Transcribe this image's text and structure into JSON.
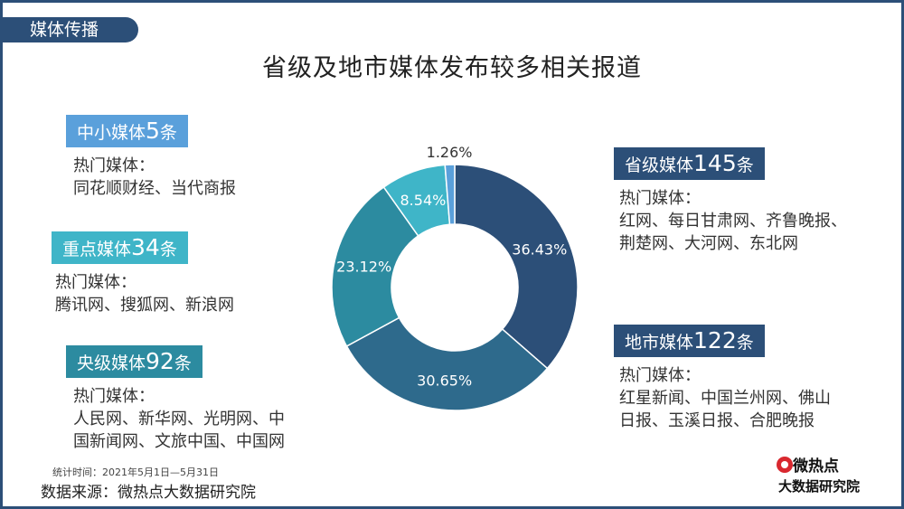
{
  "header": {
    "tag": "媒体传播",
    "title": "省级及地市媒体发布较多相关报道"
  },
  "groups": {
    "small": {
      "label": "中小媒体",
      "count": "5",
      "unit": "条",
      "line1": "热门媒体：",
      "line2": "同花顺财经、当代商报",
      "line3": ""
    },
    "key": {
      "label": "重点媒体",
      "count": "34",
      "unit": "条",
      "line1": "热门媒体：",
      "line2": "腾讯网、搜狐网、新浪网",
      "line3": ""
    },
    "central": {
      "label": "央级媒体",
      "count": "92",
      "unit": "条",
      "line1": "热门媒体：",
      "line2": "人民网、新华网、光明网、中",
      "line3": "国新闻网、文旅中国、中国网"
    },
    "prov": {
      "label": "省级媒体",
      "count": "145",
      "unit": "条",
      "line1": "热门媒体：",
      "line2": "红网、每日甘肃网、齐鲁晚报、",
      "line3": "荆楚网、大河网、东北网"
    },
    "city": {
      "label": "地市媒体",
      "count": "122",
      "unit": "条",
      "line1": "热门媒体：",
      "line2": "红星新闻、中国兰州网、佛山",
      "line3": "日报、玉溪日报、合肥晚报"
    }
  },
  "chart_data": {
    "type": "pie",
    "slices": [
      {
        "label": "省级媒体",
        "value": 36.43,
        "text": "36.43%",
        "color": "#2c4f78"
      },
      {
        "label": "地市媒体",
        "value": 30.65,
        "text": "30.65%",
        "color": "#2e6a8c"
      },
      {
        "label": "央级媒体",
        "value": 23.12,
        "text": "23.12%",
        "color": "#2c8ba0"
      },
      {
        "label": "重点媒体",
        "value": 8.54,
        "text": "8.54%",
        "color": "#3fb5c8"
      },
      {
        "label": "中小媒体",
        "value": 1.26,
        "text": "1.26%",
        "color": "#5aa0db"
      }
    ]
  },
  "footer": {
    "time": "统计时间：2021年5月1日—5月31日",
    "source": "数据来源：微热点大数据研究院"
  },
  "logo": {
    "top": "微热点",
    "bottom": "大数据研究院"
  }
}
